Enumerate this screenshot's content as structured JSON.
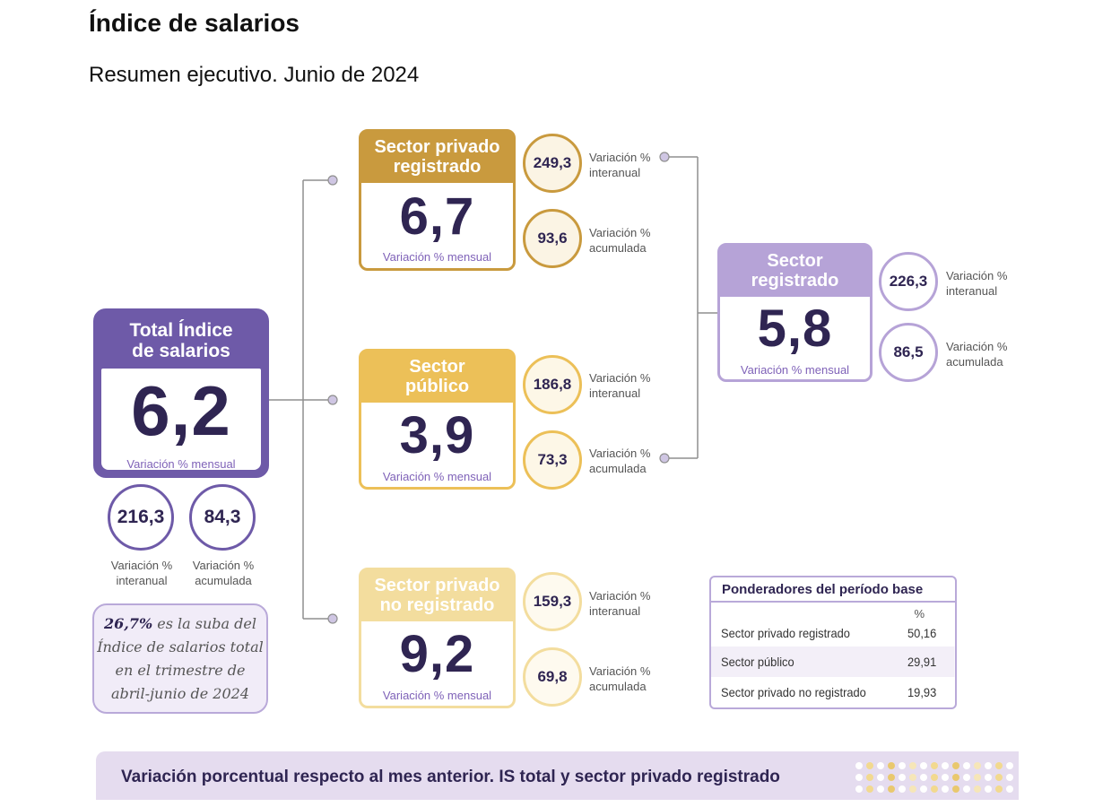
{
  "header": {
    "title": "Índice de salarios",
    "subtitle": "Resumen ejecutivo. Junio de 2024"
  },
  "colors": {
    "purple_dark": "#6e5aa8",
    "purple_light": "#b6a3d7",
    "gold_dark": "#c99a3e",
    "gold": "#ecc058",
    "gold_light": "#f3dd9e",
    "value_ink": "#2f2552"
  },
  "total": {
    "title_line1": "Total Índice",
    "title_line2": "de salarios",
    "value": "6,2",
    "caption": "Variación % mensual",
    "interanual": "216,3",
    "acumulada": "84,3",
    "interanual_label_line1": "Variación %",
    "interanual_label_line2": "interanual",
    "acumulada_label_line1": "Variación %",
    "acumulada_label_line2": "acumulada"
  },
  "privado_registrado": {
    "title_line1": "Sector privado",
    "title_line2": "registrado",
    "value": "6,7",
    "caption": "Variación % mensual",
    "interanual": "249,3",
    "acumulada": "93,6",
    "interanual_label_line1": "Variación %",
    "interanual_label_line2": "interanual",
    "acumulada_label_line1": "Variación %",
    "acumulada_label_line2": "acumulada"
  },
  "publico": {
    "title_line1": "Sector",
    "title_line2": "público",
    "value": "3,9",
    "caption": "Variación % mensual",
    "interanual": "186,8",
    "acumulada": "73,3",
    "interanual_label_line1": "Variación %",
    "interanual_label_line2": "interanual",
    "acumulada_label_line1": "Variación %",
    "acumulada_label_line2": "acumulada"
  },
  "privado_no_registrado": {
    "title_line1": "Sector privado",
    "title_line2": "no registrado",
    "value": "9,2",
    "caption": "Variación % mensual",
    "interanual": "159,3",
    "acumulada": "69,8",
    "interanual_label_line1": "Variación %",
    "interanual_label_line2": "interanual",
    "acumulada_label_line1": "Variación %",
    "acumulada_label_line2": "acumulada"
  },
  "registrado": {
    "title_line1": "Sector",
    "title_line2": "registrado",
    "value": "5,8",
    "caption": "Variación % mensual",
    "interanual": "226,3",
    "acumulada": "86,5",
    "interanual_label_line1": "Variación %",
    "interanual_label_line2": "interanual",
    "acumulada_label_line1": "Variación %",
    "acumulada_label_line2": "acumulada"
  },
  "note": {
    "highlight": "26,7%",
    "line1_rest": " es la suba del",
    "line2": "Índice de salarios total",
    "line3": "en el trimestre de",
    "line4": "abril-junio de 2024"
  },
  "weights": {
    "title": "Ponderadores del período base",
    "unit": "%",
    "rows": [
      {
        "label": "Sector privado registrado",
        "value": "50,16"
      },
      {
        "label": "Sector público",
        "value": "29,91"
      },
      {
        "label": "Sector privado no registrado",
        "value": "19,93"
      }
    ]
  },
  "banner": {
    "text": "Variación porcentual respecto al mes anterior. IS total y sector privado registrado"
  }
}
